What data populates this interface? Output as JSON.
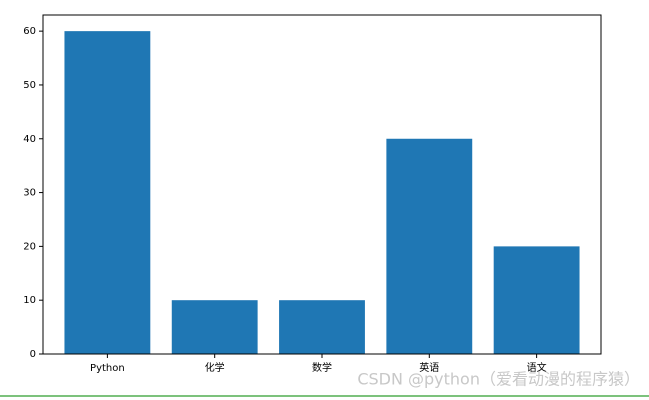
{
  "chart_data": {
    "type": "bar",
    "categories": [
      "Python",
      "化学",
      "数学",
      "英语",
      "语文"
    ],
    "values": [
      60,
      10,
      10,
      40,
      20
    ],
    "color": "#1f77b4",
    "ylim": [
      0,
      63
    ],
    "yticks": [
      0,
      10,
      20,
      30,
      40,
      50,
      60
    ],
    "grid": false
  },
  "watermark": "CSDN @python（爱看动漫的程序猿）"
}
